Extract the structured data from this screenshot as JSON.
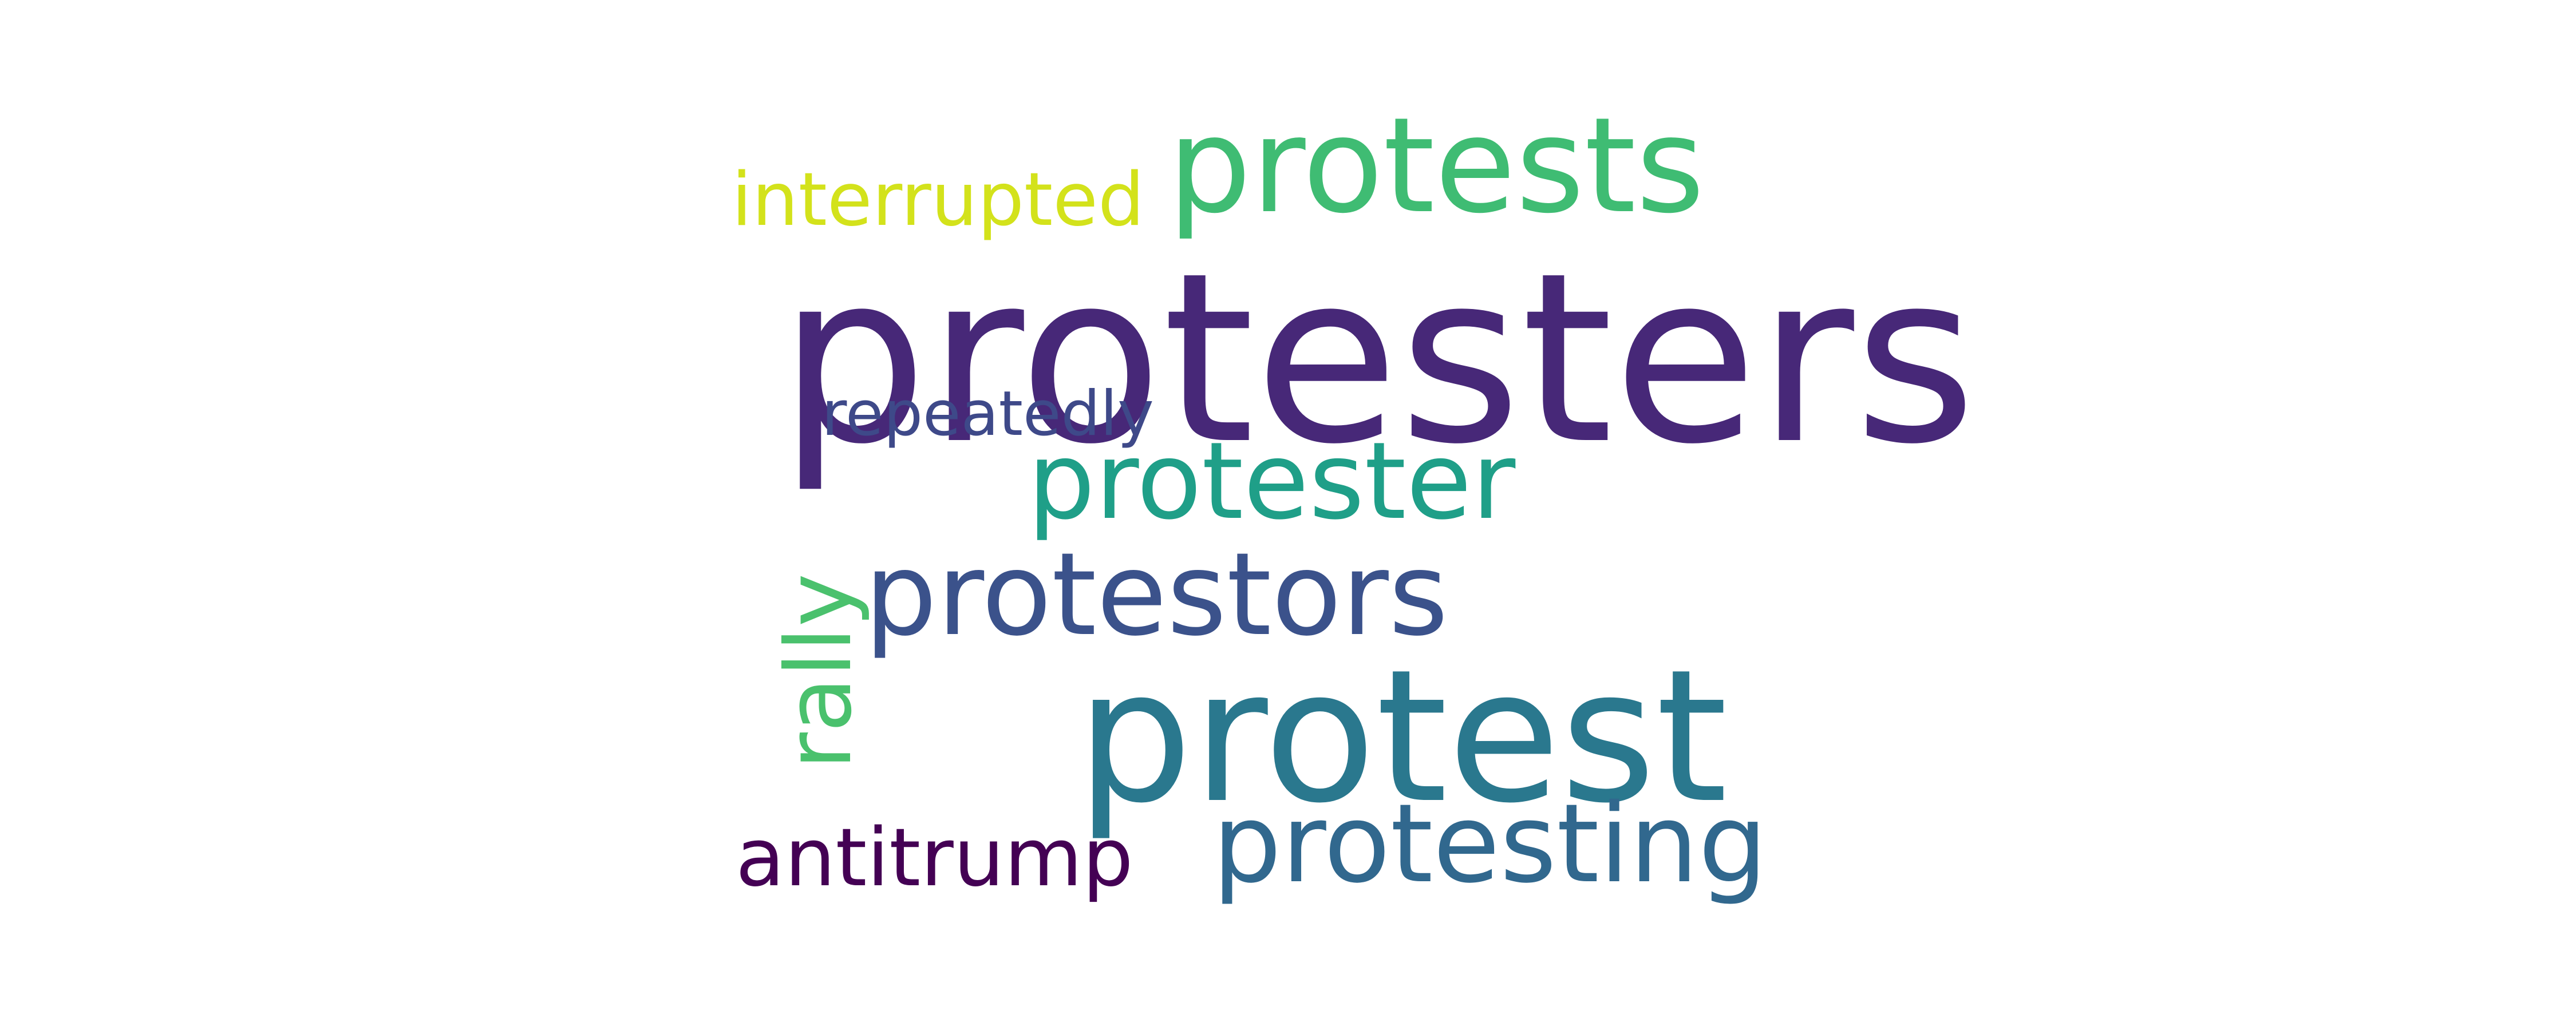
{
  "word_cloud": {
    "words": {
      "protesters": {
        "text": "protesters",
        "color": "#472878"
      },
      "protests": {
        "text": "protests",
        "color": "#3fbc73"
      },
      "interrupted": {
        "text": "interrupted",
        "color": "#d3e21b"
      },
      "repeatedly": {
        "text": "repeatedly",
        "color": "#3e4989"
      },
      "protester": {
        "text": "protester",
        "color": "#1f9f88"
      },
      "protestors": {
        "text": "protestors",
        "color": "#3b528b"
      },
      "protest": {
        "text": "protest",
        "color": "#2a788e"
      },
      "protesting": {
        "text": "protesting",
        "color": "#31688e"
      },
      "antitrump": {
        "text": "antitrump",
        "color": "#440154"
      },
      "rally": {
        "text": "rally",
        "color": "#4ac16d"
      }
    }
  }
}
